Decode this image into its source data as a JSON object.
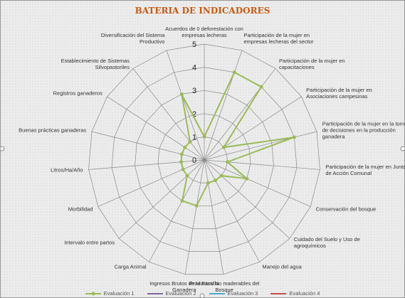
{
  "chart_data": {
    "type": "radar",
    "title": "BATERIA DE INDICADORES",
    "categories": [
      "Acuerdos de 0 deforestación con empresas lecheras",
      "Participación de la mujer en empresas lecheras del sector",
      "Participación de la mujer en capacitaciones",
      "Participación de la mujer en Asociaciones campesinas",
      "Participación de la mujer en la toma de decisiones en la producción ganadera",
      "Participación de la mujer en Juntas de Acción Comunal",
      "Conservación del bosque",
      "Cuidado del Suelo y Uso de agroquímicos",
      "Manejo del agua",
      "Productos No maderables del Bosque",
      "Ingresos Brutos de la Familia Ganadera",
      "Carga Animal",
      "Intervalo entre partos",
      "Morbilidad",
      "Litros/Ha/Año",
      "Buenas prácticas ganaderas",
      "Registros ganaderos",
      "Establecimiento de Sistemas Silvopastoriles",
      "Diversificación del Sistema Productivo"
    ],
    "series": [
      {
        "name": "Evaluación 1",
        "color": "#9bbb59",
        "values": [
          1,
          4,
          4,
          1,
          4,
          1,
          2,
          1,
          1,
          1,
          2,
          2,
          1,
          1,
          1,
          1,
          1,
          1,
          3
        ]
      },
      {
        "name": "Evaluación 2",
        "color": "#8064a2",
        "values": [
          null,
          null,
          null,
          null,
          null,
          null,
          null,
          null,
          null,
          null,
          null,
          null,
          null,
          null,
          null,
          null,
          null,
          null,
          null
        ]
      },
      {
        "name": "Evaluación 3",
        "color": "#4bacc6",
        "values": [
          null,
          null,
          null,
          null,
          null,
          null,
          null,
          null,
          null,
          null,
          null,
          null,
          null,
          null,
          null,
          null,
          null,
          null,
          null
        ]
      },
      {
        "name": "Evaluación 4",
        "color": "#c0504d",
        "values": [
          null,
          null,
          null,
          null,
          null,
          null,
          null,
          null,
          null,
          null,
          null,
          null,
          null,
          null,
          null,
          null,
          null,
          null,
          null
        ]
      }
    ],
    "ylim": [
      0,
      5
    ],
    "yticks": [
      0,
      1,
      2,
      3,
      4,
      5
    ],
    "grid": true,
    "legend": "bottom"
  }
}
